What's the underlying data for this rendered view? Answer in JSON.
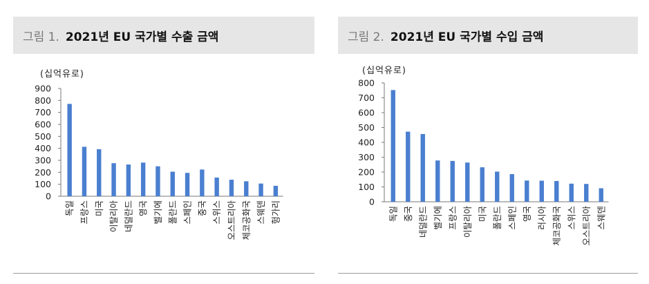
{
  "charts": [
    {
      "fig_label": "그림 1.",
      "title": "2021년 EU 국가별 수출 금액",
      "unit": "(십억유로)"
    },
    {
      "fig_label": "그림 2.",
      "title": "2021년 EU 국가별 수입 금액",
      "unit": "(십억유로)"
    }
  ],
  "colors": {
    "bar": "#4a7fd0",
    "axis": "#777777",
    "title_bg": "#e6e6e6"
  },
  "chart_data": [
    {
      "type": "bar",
      "title": "2021년 EU 국가별 수출 금액",
      "ylabel": "(십억유로)",
      "xlabel": "",
      "ylim": [
        0,
        900
      ],
      "yticks": [
        0,
        100,
        200,
        300,
        400,
        500,
        600,
        700,
        800,
        900
      ],
      "grid": false,
      "categories": [
        "독일",
        "프랑스",
        "미국",
        "이탈리아",
        "네덜란드",
        "영국",
        "벨기에",
        "폴란드",
        "스페인",
        "중국",
        "스위스",
        "오스트리아",
        "체코공화국",
        "스웨덴",
        "헝가리"
      ],
      "values": [
        771,
        413,
        393,
        276,
        265,
        281,
        250,
        205,
        195,
        223,
        156,
        138,
        125,
        106,
        87
      ]
    },
    {
      "type": "bar",
      "title": "2021년 EU 국가별 수입 금액",
      "ylabel": "(십억유로)",
      "xlabel": "",
      "ylim": [
        0,
        800
      ],
      "yticks": [
        0,
        100,
        200,
        300,
        400,
        500,
        600,
        700,
        800
      ],
      "grid": false,
      "categories": [
        "독일",
        "중국",
        "네덜란드",
        "벨기에",
        "프랑스",
        "이탈리아",
        "미국",
        "폴란드",
        "스페인",
        "영국",
        "러시아",
        "체코공화국",
        "스위스",
        "오스트리아",
        "스웨덴"
      ],
      "values": [
        752,
        472,
        456,
        278,
        275,
        264,
        232,
        203,
        186,
        143,
        142,
        140,
        122,
        120,
        91
      ]
    }
  ]
}
